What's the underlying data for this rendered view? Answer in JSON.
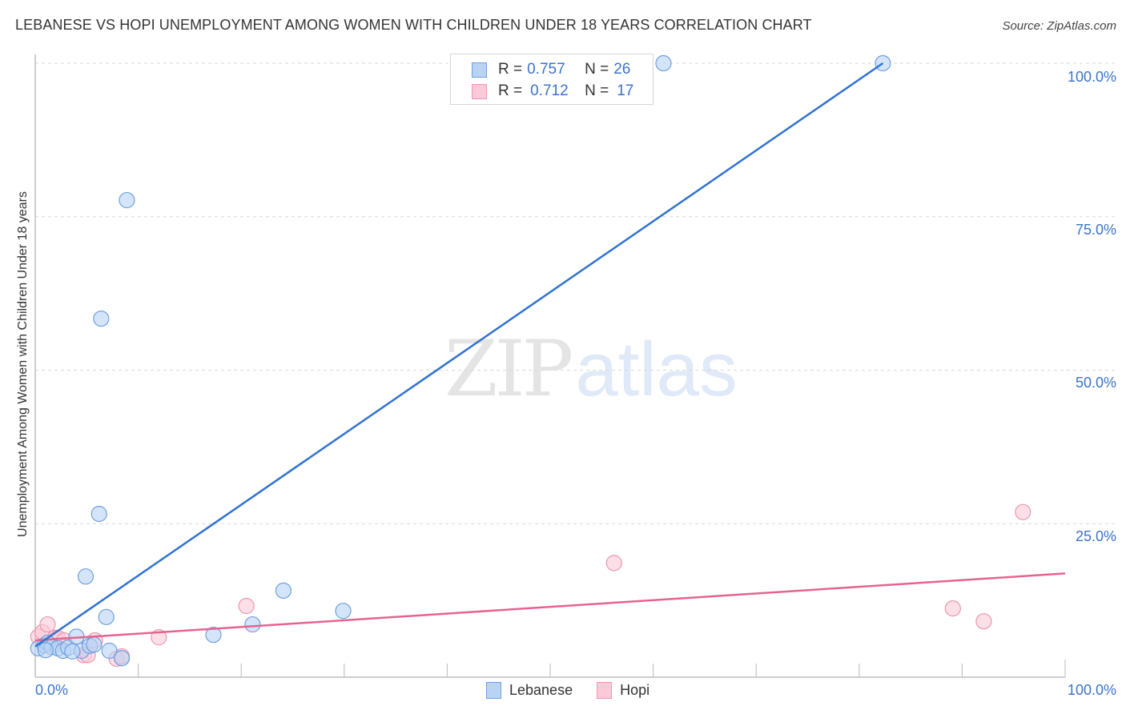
{
  "header": {
    "title": "LEBANESE VS HOPI UNEMPLOYMENT AMONG WOMEN WITH CHILDREN UNDER 18 YEARS CORRELATION CHART",
    "source": "Source: ZipAtlas.com"
  },
  "watermark": {
    "zip": "ZIP",
    "atlas": "atlas"
  },
  "legend": {
    "rows": [
      {
        "r_label": "R = ",
        "r_value": "0.757",
        "n_label": "N = ",
        "n_value": "26",
        "color": "#b9d3f5",
        "border": "#6f9fdf"
      },
      {
        "r_label": "R = ",
        "r_value": "0.712",
        "n_label": "N = ",
        "n_value": "17",
        "color": "#fcc9d8",
        "border": "#ea97b0"
      }
    ]
  },
  "bottom_legend": [
    {
      "label": "Lebanese",
      "color": "#b9d3f5"
    },
    {
      "label": "Hopi",
      "color": "#fcc9d8"
    }
  ],
  "axes": {
    "ylabel": "Unemployment Among Women with Children Under 18 years",
    "yticks": [
      "100.0%",
      "75.0%",
      "50.0%",
      "25.0%"
    ],
    "xticks": [
      "0.0%",
      "100.0%"
    ]
  },
  "colors": {
    "lebanese_fill": "#b9d3f5",
    "lebanese_stroke": "#6f9fdf",
    "lebanese_line": "#2f72d1",
    "hopi_fill": "#fcc9d8",
    "hopi_stroke": "#ea97b0",
    "hopi_line": "#e4648f",
    "tick_text": "#3b73c9"
  },
  "chart_data": {
    "type": "scatter",
    "title": "LEBANESE VS HOPI UNEMPLOYMENT AMONG WOMEN WITH CHILDREN UNDER 18 YEARS CORRELATION CHART",
    "xlabel": "",
    "ylabel": "Unemployment Among Women with Children Under 18 years",
    "xlim": [
      0,
      100
    ],
    "ylim": [
      0,
      100
    ],
    "x_tick_labels": [
      "0.0%",
      "100.0%"
    ],
    "y_tick_labels": [
      "25.0%",
      "50.0%",
      "75.0%",
      "100.0%"
    ],
    "grid": "horizontal dashed at 25/50/75/100",
    "legend_position": "top-center and bottom-center",
    "series": [
      {
        "name": "Lebanese",
        "R": 0.757,
        "N": 26,
        "points": [
          [
            0.3,
            4.7
          ],
          [
            0.9,
            5.2
          ],
          [
            1.2,
            5.6
          ],
          [
            1.6,
            4.9
          ],
          [
            2.2,
            4.7
          ],
          [
            2.7,
            4.3
          ],
          [
            3.2,
            4.8
          ],
          [
            4.0,
            6.6
          ],
          [
            4.5,
            4.3
          ],
          [
            4.9,
            16.4
          ],
          [
            5.3,
            5.1
          ],
          [
            5.7,
            5.3
          ],
          [
            6.2,
            26.6
          ],
          [
            6.4,
            58.4
          ],
          [
            6.9,
            9.8
          ],
          [
            7.2,
            4.3
          ],
          [
            8.4,
            3.1
          ],
          [
            8.9,
            77.7
          ],
          [
            17.3,
            6.9
          ],
          [
            21.1,
            8.6
          ],
          [
            24.1,
            14.1
          ],
          [
            29.9,
            10.8
          ],
          [
            61.0,
            100.0
          ],
          [
            82.3,
            100.0
          ],
          [
            1.0,
            4.4
          ],
          [
            3.6,
            4.2
          ]
        ],
        "trend_line": {
          "x": [
            0,
            82.3
          ],
          "y": [
            5.0,
            100.0
          ]
        }
      },
      {
        "name": "Hopi",
        "R": 0.712,
        "N": 17,
        "points": [
          [
            0.3,
            6.6
          ],
          [
            0.7,
            7.3
          ],
          [
            1.2,
            8.6
          ],
          [
            1.9,
            6.4
          ],
          [
            2.2,
            6.4
          ],
          [
            2.8,
            6.0
          ],
          [
            4.7,
            3.6
          ],
          [
            5.1,
            3.6
          ],
          [
            5.8,
            6.0
          ],
          [
            7.9,
            3.0
          ],
          [
            8.4,
            3.4
          ],
          [
            12.0,
            6.5
          ],
          [
            20.5,
            11.6
          ],
          [
            56.2,
            18.6
          ],
          [
            89.1,
            11.2
          ],
          [
            92.1,
            9.1
          ],
          [
            95.9,
            26.9
          ]
        ],
        "trend_line": {
          "x": [
            0,
            100
          ],
          "y": [
            6.0,
            16.9
          ]
        }
      }
    ]
  }
}
